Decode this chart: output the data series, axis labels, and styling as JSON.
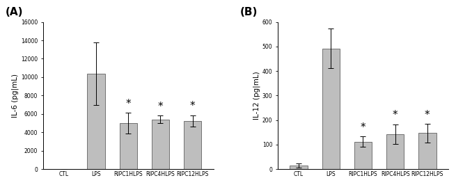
{
  "panel_A": {
    "label": "(A)",
    "categories": [
      "CTL",
      "LPS",
      "RIPC1HLPS",
      "RIPC4HLPS",
      "RIPC12HLPS"
    ],
    "values": [
      0,
      10400,
      5000,
      5400,
      5250
    ],
    "errors": [
      0,
      3400,
      1100,
      400,
      600
    ],
    "ylabel": "IL-6 (pg|mL)",
    "ylim": [
      0,
      16000
    ],
    "yticks": [
      0,
      2000,
      4000,
      6000,
      8000,
      10000,
      12000,
      14000,
      16000
    ],
    "sig_stars": [
      false,
      false,
      true,
      true,
      true
    ],
    "bar_color": "#bebebe",
    "bar_edgecolor": "#606060"
  },
  "panel_B": {
    "label": "(B)",
    "categories": [
      "CTL",
      "LPS",
      "RIPC1HLPS",
      "RIPC4HLPS",
      "RIPC12HLPS"
    ],
    "values": [
      15,
      492,
      112,
      143,
      147
    ],
    "errors": [
      8,
      80,
      22,
      40,
      38
    ],
    "ylabel": "IL-12 (pg|mL)",
    "ylim": [
      0,
      600
    ],
    "yticks": [
      0,
      100,
      200,
      300,
      400,
      500,
      600
    ],
    "sig_stars": [
      false,
      false,
      true,
      true,
      true
    ],
    "bar_color": "#bebebe",
    "bar_edgecolor": "#606060"
  },
  "figure_bg": "#ffffff",
  "bar_width": 0.55,
  "capsize": 3,
  "star_fontsize": 11,
  "panel_label_fontsize": 11,
  "tick_fontsize": 5.5,
  "axis_label_fontsize": 7.5
}
